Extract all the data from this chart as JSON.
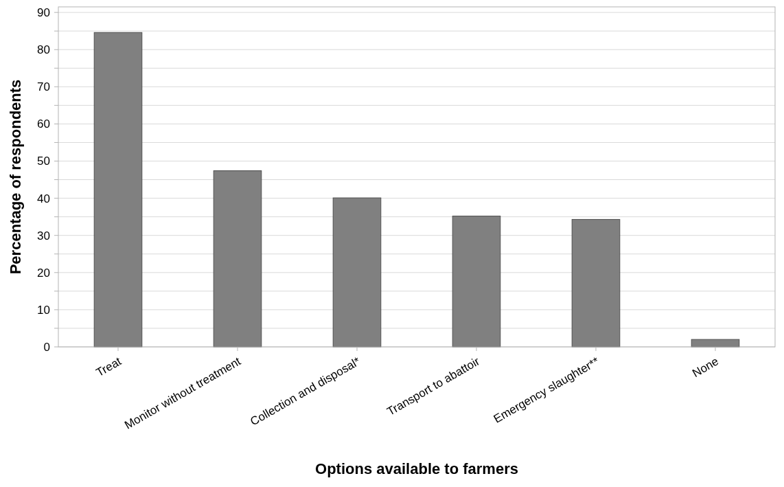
{
  "chart_data": {
    "type": "bar",
    "xlabel": "Options available to farmers",
    "ylabel": "Percentage of respondents",
    "categories": [
      "Treat",
      "Monitor without treatment",
      "Collection and disposal*",
      "Transport to abattoir",
      "Emergency slaughter**",
      "None"
    ],
    "values": [
      84.6,
      47.4,
      40.1,
      35.2,
      34.3,
      2.0
    ],
    "color": "#808080",
    "ylim": [
      0,
      91.5
    ],
    "yticks": [
      0,
      {
        "value": 5,
        "label": null
      },
      10,
      {
        "value": 15,
        "label": null
      },
      20,
      {
        "value": 25,
        "label": null
      },
      30,
      {
        "value": 35,
        "label": null
      },
      40,
      {
        "value": 45,
        "label": null
      },
      50,
      {
        "value": 55,
        "label": null
      },
      60,
      {
        "value": 65,
        "label": null
      },
      70,
      {
        "value": 75,
        "label": null
      },
      80,
      {
        "value": 85,
        "label": null
      },
      90
    ],
    "grid": "y"
  }
}
